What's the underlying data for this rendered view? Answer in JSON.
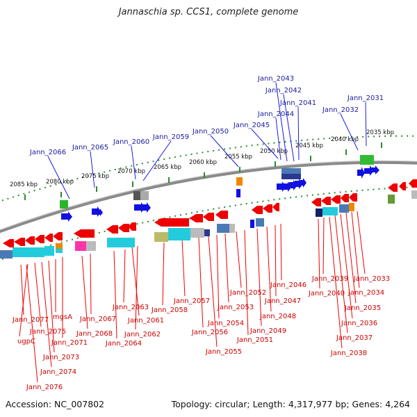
{
  "title": "Jannaschia sp. CCS1, complete genome",
  "accession": "Accession: NC_007802",
  "topology": "Topology: circular; Length: 4,317,977 bp; Genes: 4,264",
  "colors": {
    "top_label": "#1a1aa0",
    "bottom_label": "#cc0000",
    "tick": "#2a8a2a",
    "backbone": "#8a8a8a"
  },
  "kbp_labels": [
    "2085 kbp",
    "2080 kbp",
    "2075 kbp",
    "2070 kbp",
    "2065 kbp",
    "2060 kbp",
    "2055 kbp",
    "2050 kbp",
    "2045 kbp",
    "2040 kbp",
    "2035 kbp"
  ],
  "top_genes": [
    "Jann_2066",
    "Jann_2065",
    "Jann_2060",
    "Jann_2059",
    "Jann_2050",
    "Jann_2045",
    "Jann_2044",
    "Jann_2043",
    "Jann_2042",
    "Jann_2041",
    "Jann_2032",
    "Jann_2031"
  ],
  "bottom_genes": [
    "Jann_2077",
    "Jann_2075",
    "mgsA",
    "Jann_2071",
    "ugpC",
    "Jann_2073",
    "Jann_2074",
    "Jann_2076",
    "Jann_2067",
    "Jann_2068",
    "Jann_2063",
    "Jann_2064",
    "Jann_2061",
    "Jann_2062",
    "Jann_2058",
    "Jann_2057",
    "Jann_2056",
    "Jann_2055",
    "Jann_2054",
    "Jann_2053",
    "Jann_2052",
    "Jann_2051",
    "Jann_2049",
    "Jann_2048",
    "Jann_2047",
    "Jann_2046",
    "Jann_2040",
    "Jann_2039",
    "Jann_2038",
    "Jann_2037",
    "Jann_2036",
    "Jann_2035",
    "Jann_2034",
    "Jann_2033"
  ]
}
